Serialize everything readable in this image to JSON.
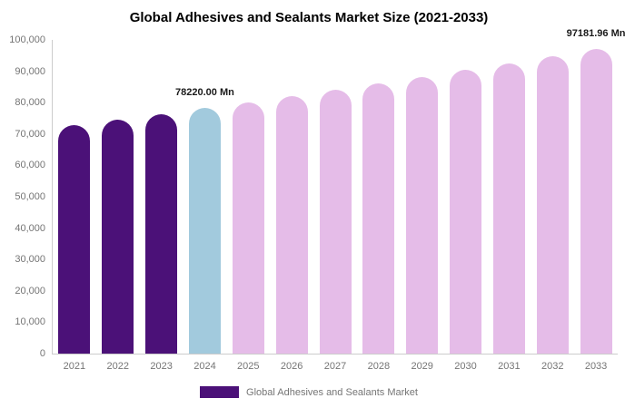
{
  "title": "Global Adhesives and Sealants Market Size (2021-2033)",
  "chart_data": {
    "type": "bar",
    "title": "Global Adhesives and Sealants Market Size (2021-2033)",
    "categories": [
      "2021",
      "2022",
      "2023",
      "2024",
      "2025",
      "2026",
      "2027",
      "2028",
      "2029",
      "2030",
      "2031",
      "2032",
      "2033"
    ],
    "values": [
      72760,
      74536,
      76356,
      78220.0,
      80129,
      82085,
      84088,
      86141,
      88243,
      90397,
      92603,
      94863,
      97181.96
    ],
    "unit": "Mn",
    "ylim": [
      0,
      100000
    ],
    "ytick_step": 10000,
    "xlabel": "",
    "ylabel": "",
    "grid": false,
    "bar_phase": [
      "historical",
      "historical",
      "historical",
      "current",
      "forecast",
      "forecast",
      "forecast",
      "forecast",
      "forecast",
      "forecast",
      "forecast",
      "forecast",
      "forecast"
    ],
    "colors": {
      "historical": "#4B1178",
      "current": "#A2CADD",
      "forecast": "#E5BCE8"
    },
    "axis_label_color": "#757575",
    "axis_line_color": "#cccccc",
    "annotations": [
      {
        "category": "2024",
        "text": "78220.00 Mn"
      },
      {
        "category": "2033",
        "text": "97181.96 Mn"
      }
    ],
    "legend_position": "bottom",
    "legend": [
      {
        "label": "Global Adhesives and Sealants Market",
        "color": "#4B1178"
      }
    ]
  }
}
